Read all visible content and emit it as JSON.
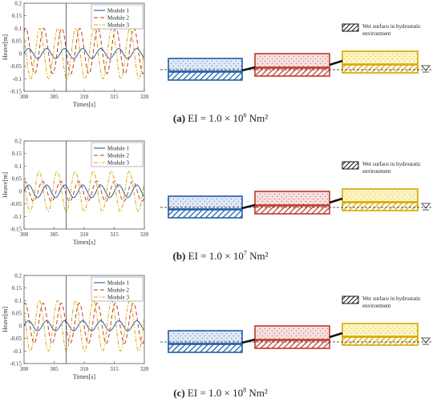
{
  "colors": {
    "module1": "#1f5fa8",
    "module2": "#c0392b",
    "module3": "#d8a800",
    "module1_fill": "#dfe7f5",
    "module2_fill": "#f6dede",
    "module3_fill": "#fbf4c2"
  },
  "legend_wet_surface": "Wet surface in hydrostatic environment",
  "legend_wet_surface_lines": [
    "Wet surface in hydrostatic",
    "environment"
  ],
  "panels": [
    {
      "caption": {
        "label": "(a)",
        "text": "EI = 1.0 × 10",
        "exp": "6",
        "unit": " Nm²"
      },
      "chart_data": {
        "type": "line",
        "xlabel": "Times[s]",
        "ylabel": "Heave[m]",
        "xlim": [
          300,
          320
        ],
        "ylim": [
          -0.15,
          0.2
        ],
        "xticks": [
          300,
          305,
          310,
          315,
          320
        ],
        "yticks": [
          -0.15,
          -0.1,
          -0.05,
          0,
          0.05,
          0.1,
          0.15,
          0.2
        ],
        "ytick_labels": [
          "-0.15",
          "-0.1",
          "-0.05",
          "0",
          "0.05",
          "0.1",
          "0.15",
          "0.2"
        ],
        "legend": "top-right",
        "vline_x": 307,
        "period": 3,
        "series": [
          {
            "name": "Module 1",
            "amplitude": 0.02,
            "offset": 0.0,
            "phase": 0.0,
            "style": "solid"
          },
          {
            "name": "Module 2",
            "amplitude": 0.09,
            "offset": 0.01,
            "phase": 1.0,
            "style": "dashed"
          },
          {
            "name": "Module 3",
            "amplitude": 0.1,
            "offset": 0.0,
            "phase": 2.4,
            "style": "dashdot"
          }
        ]
      }
    },
    {
      "caption": {
        "label": "(b)",
        "text": "EI = 1.0 × 10",
        "exp": "7",
        "unit": " Nm²"
      },
      "chart_data": {
        "type": "line",
        "xlabel": "Times[s]",
        "ylabel": "Heave[m]",
        "xlim": [
          300,
          320
        ],
        "ylim": [
          -0.15,
          0.2
        ],
        "xticks": [
          300,
          305,
          310,
          315,
          320
        ],
        "yticks": [
          -0.15,
          -0.1,
          -0.05,
          0,
          0.05,
          0.1,
          0.15,
          0.2
        ],
        "ytick_labels": [
          "-0.15",
          "-0.1",
          "-0.05",
          "0",
          "0.05",
          "0.1",
          "0.15",
          "0.2"
        ],
        "legend": "top-right",
        "vline_x": 307,
        "period": 3,
        "series": [
          {
            "name": "Module 1",
            "amplitude": 0.025,
            "offset": 0.0,
            "phase": 0.0,
            "style": "solid"
          },
          {
            "name": "Module 2",
            "amplitude": 0.04,
            "offset": 0.0,
            "phase": 1.4,
            "style": "dashed"
          },
          {
            "name": "Module 3",
            "amplitude": 0.08,
            "offset": 0.0,
            "phase": 2.6,
            "style": "dashdot"
          }
        ]
      }
    },
    {
      "caption": {
        "label": "(c)",
        "text": "EI = 1.0 × 10",
        "exp": "8",
        "unit": " Nm²"
      },
      "chart_data": {
        "type": "line",
        "xlabel": "Times[s]",
        "ylabel": "Heave[m]",
        "xlim": [
          300,
          320
        ],
        "ylim": [
          -0.15,
          0.2
        ],
        "xticks": [
          300,
          305,
          310,
          315,
          320
        ],
        "yticks": [
          -0.15,
          -0.1,
          -0.05,
          0,
          0.05,
          0.1,
          0.15,
          0.2
        ],
        "ytick_labels": [
          "-0.15",
          "-0.1",
          "-0.05",
          "0",
          "0.05",
          "0.1",
          "0.15",
          "0.2"
        ],
        "legend": "top-right",
        "vline_x": 307,
        "period": 3,
        "series": [
          {
            "name": "Module 1",
            "amplitude": 0.02,
            "offset": 0.0,
            "phase": 0.0,
            "style": "solid"
          },
          {
            "name": "Module 2",
            "amplitude": 0.08,
            "offset": 0.01,
            "phase": 1.2,
            "style": "dashed"
          },
          {
            "name": "Module 3",
            "amplitude": 0.1,
            "offset": 0.0,
            "phase": 2.5,
            "style": "dashdot"
          }
        ]
      }
    }
  ]
}
